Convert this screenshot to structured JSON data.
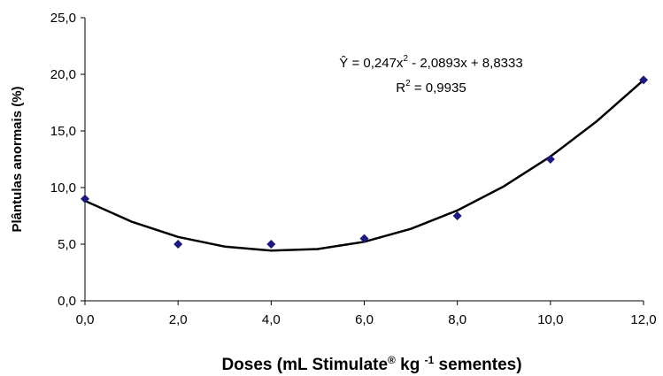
{
  "chart_data": {
    "type": "scatter",
    "xlabel": [
      "Doses (mL Stimulate",
      "®",
      " kg ",
      "-1",
      " sementes)"
    ],
    "ylabel": "Plântulas anormais (%)",
    "annotations": [
      [
        "Ŷ = 0,247x",
        "2",
        " - 2,0893x + 8,8333"
      ],
      [
        "R",
        "2",
        " = 0,9935"
      ]
    ],
    "xlim": [
      0,
      12
    ],
    "xticks": [
      {
        "value": 0,
        "label": "0,0"
      },
      {
        "value": 2,
        "label": "2,0"
      },
      {
        "value": 4,
        "label": "4,0"
      },
      {
        "value": 6,
        "label": "6,0"
      },
      {
        "value": 8,
        "label": "8,0"
      },
      {
        "value": 10,
        "label": "10,0"
      },
      {
        "value": 12,
        "label": "12,0"
      }
    ],
    "ylim": [
      0,
      25
    ],
    "yticks": [
      {
        "value": 0,
        "label": "0,0"
      },
      {
        "value": 5,
        "label": "5,0"
      },
      {
        "value": 10,
        "label": "10,0"
      },
      {
        "value": 15,
        "label": "15,0"
      },
      {
        "value": 20,
        "label": "20,0"
      },
      {
        "value": 25,
        "label": "25,0"
      }
    ],
    "grid": false,
    "series": [
      {
        "type": "scatter",
        "color": "#1a1a80",
        "x": [
          0,
          2,
          4,
          6,
          8,
          10,
          12
        ],
        "values": [
          9,
          5,
          5,
          5.5,
          7.5,
          12.5,
          19.5
        ]
      },
      {
        "type": "line",
        "color": "#000000",
        "x": [
          0,
          1,
          2,
          3,
          4,
          5,
          6,
          7,
          8,
          9,
          10,
          11,
          12
        ],
        "values": [
          8.83,
          6.99,
          5.64,
          4.79,
          4.43,
          4.57,
          5.21,
          6.35,
          7.98,
          10.11,
          12.74,
          15.87,
          19.49
        ]
      }
    ]
  }
}
